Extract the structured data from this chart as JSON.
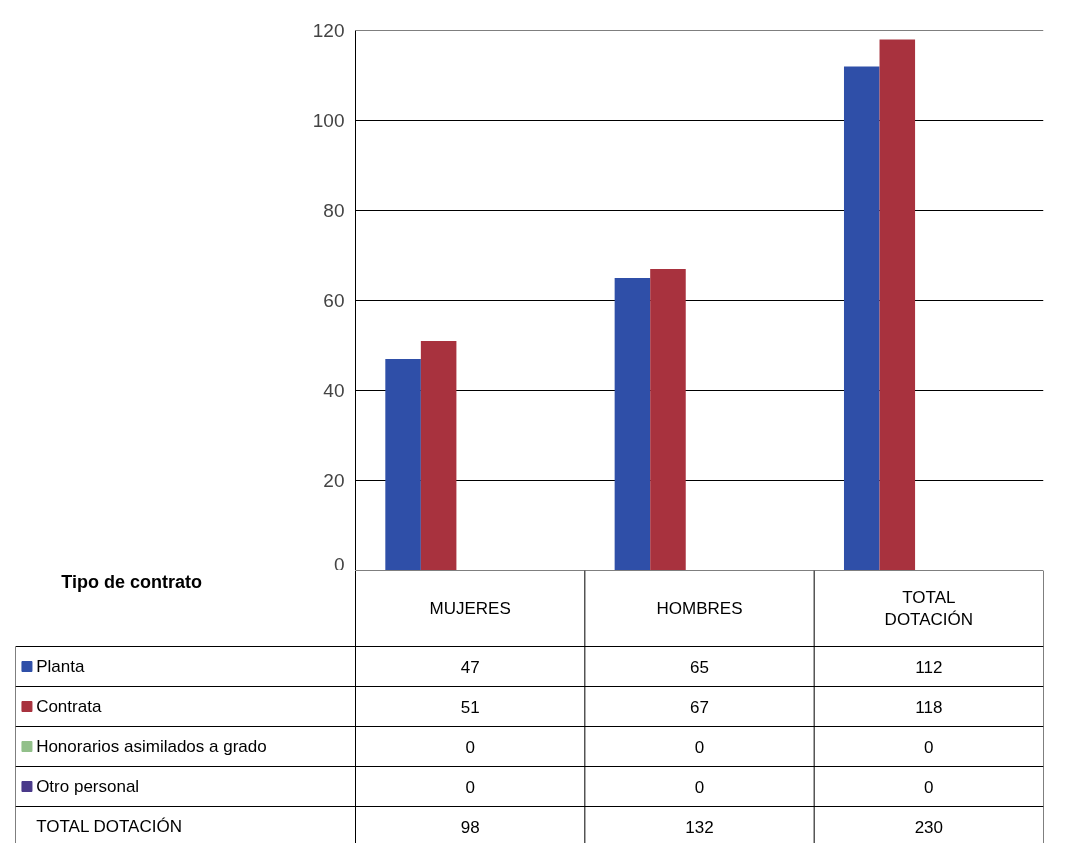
{
  "chart_data": {
    "type": "bar",
    "legend_title": "Tipo de contrato",
    "categories": [
      "MUJERES",
      "HOMBRES",
      "TOTAL DOTACIÓN"
    ],
    "series": [
      {
        "name": "Planta",
        "color": "#2f4fa8",
        "values": [
          47,
          65,
          112
        ]
      },
      {
        "name": "Contrata",
        "color": "#a8323e",
        "values": [
          51,
          67,
          118
        ]
      },
      {
        "name": "Honorarios asimilados a grado",
        "color": "#92c08a",
        "values": [
          0,
          0,
          0
        ]
      },
      {
        "name": "Otro personal",
        "color": "#4a3a8a",
        "values": [
          0,
          0,
          0
        ]
      }
    ],
    "ylim": [
      0,
      120
    ],
    "yticks": [
      0,
      20,
      40,
      60,
      80,
      100,
      120
    ],
    "grid": "y",
    "legend": "bottom left",
    "data_labels": true,
    "annotations": [
      "TOTAL DOTACIÓN",
      "98",
      "132",
      "230"
    ]
  }
}
